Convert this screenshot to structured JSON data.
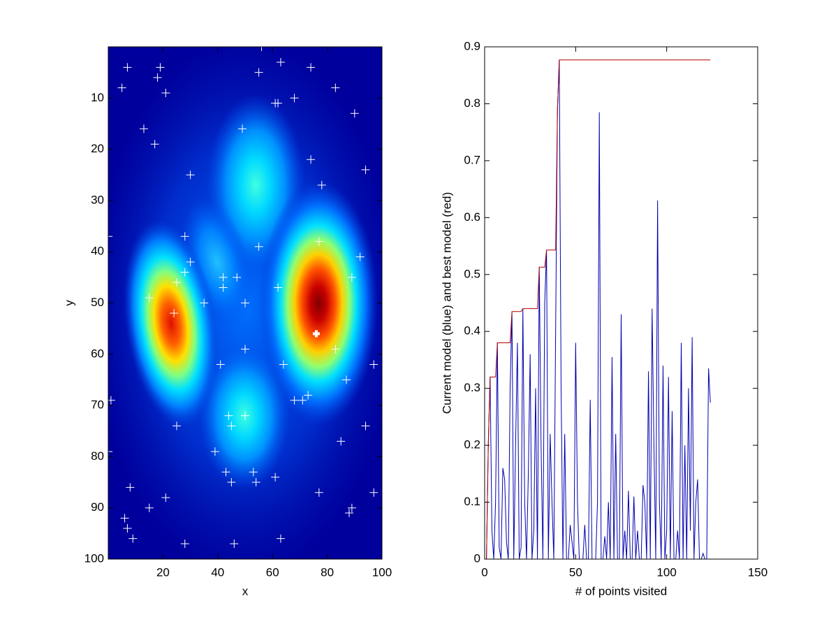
{
  "chart_data": [
    {
      "type": "scatter",
      "xlabel": "x",
      "ylabel": "y",
      "xlim": [
        0,
        100
      ],
      "ylim": [
        0,
        100
      ],
      "y_direction": "reverse",
      "xticks": [
        20,
        40,
        60,
        80,
        100
      ],
      "yticks": [
        10,
        20,
        30,
        40,
        50,
        60,
        70,
        80,
        90,
        100
      ],
      "series": [
        {
          "color": "#ffffff",
          "marker": "plus",
          "x": [
            7,
            5,
            19,
            18,
            21,
            55,
            56,
            63,
            74,
            83,
            61,
            62,
            68,
            90,
            13,
            49,
            17,
            74,
            30,
            94,
            78,
            28,
            0,
            55,
            77,
            92,
            30,
            28,
            25,
            42,
            47,
            42,
            62,
            89,
            15,
            35,
            50,
            24,
            50,
            83,
            41,
            64,
            97,
            87,
            68,
            71,
            73,
            1,
            44,
            50,
            45,
            25,
            94,
            85,
            39,
            0,
            43,
            53,
            61,
            45,
            54,
            8,
            77,
            97,
            21,
            15,
            89,
            88,
            6,
            7,
            9,
            63,
            28,
            46
          ],
          "y": [
            4,
            8,
            4,
            6,
            9,
            5,
            0,
            3,
            4,
            8,
            11,
            11,
            10,
            13,
            16,
            16,
            19,
            22,
            25,
            24,
            27,
            37,
            37,
            39,
            38,
            41,
            42,
            44,
            46,
            45,
            45,
            47,
            47,
            45,
            49,
            50,
            50,
            52,
            59,
            59,
            62,
            62,
            62,
            65,
            69,
            69,
            68,
            69,
            72,
            72,
            74,
            74,
            74,
            77,
            79,
            79,
            83,
            83,
            84,
            85,
            85,
            86,
            87,
            87,
            88,
            90,
            90,
            91,
            92,
            94,
            96,
            96,
            97,
            97
          ]
        },
        {
          "color": "#ffffff",
          "marker": "bold-plus",
          "x": [
            76
          ],
          "y": [
            56
          ]
        }
      ]
    },
    {
      "type": "line",
      "xlabel": "# of points visited",
      "ylabel": "Current model (blue) and best model (red)",
      "xlim": [
        0,
        150
      ],
      "ylim": [
        0,
        0.9
      ],
      "xticks": [
        0,
        50,
        100,
        150
      ],
      "yticks": [
        0,
        0.1,
        0.2,
        0.3,
        0.4,
        0.5,
        0.6,
        0.7,
        0.8,
        0.9
      ],
      "x": [
        1,
        2,
        3,
        4,
        5,
        6,
        7,
        8,
        9,
        10,
        11,
        12,
        13,
        14,
        15,
        16,
        17,
        18,
        19,
        20,
        21,
        22,
        23,
        24,
        25,
        26,
        27,
        28,
        29,
        30,
        31,
        32,
        33,
        34,
        35,
        36,
        37,
        38,
        39,
        40,
        41,
        42,
        43,
        44,
        45,
        46,
        47,
        48,
        49,
        50,
        51,
        52,
        53,
        54,
        55,
        56,
        57,
        58,
        59,
        60,
        61,
        62,
        63,
        64,
        65,
        66,
        67,
        68,
        69,
        70,
        71,
        72,
        73,
        74,
        75,
        76,
        77,
        78,
        79,
        80,
        81,
        82,
        83,
        84,
        85,
        86,
        87,
        88,
        89,
        90,
        91,
        92,
        93,
        94,
        95,
        96,
        97,
        98,
        99,
        100,
        101,
        102,
        103,
        104,
        105,
        106,
        107,
        108,
        109,
        110,
        111,
        112,
        113,
        114,
        115,
        116,
        117,
        118,
        119,
        120,
        121,
        122,
        123,
        124
      ],
      "series": [
        {
          "color": "#0000b0",
          "values": [
            0.0,
            0.2,
            0.32,
            0.05,
            0.0,
            0.1,
            0.38,
            0.02,
            0.0,
            0.16,
            0.14,
            0.03,
            0.0,
            0.3,
            0.435,
            0.0,
            0.2,
            0.38,
            0.0,
            0.02,
            0.44,
            0.1,
            0.0,
            0.15,
            0.36,
            0.0,
            0.05,
            0.3,
            0.0,
            0.513,
            0.2,
            0.0,
            0.45,
            0.543,
            0.0,
            0.22,
            0.1,
            0.0,
            0.4,
            0.79,
            0.877,
            0.3,
            0.0,
            0.22,
            0.0,
            0.0,
            0.06,
            0.03,
            0.0,
            0.38,
            0.1,
            0.0,
            0.0,
            0.0,
            0.06,
            0.0,
            0.0,
            0.28,
            0.0,
            0.0,
            0.0,
            0.1,
            0.785,
            0.0,
            0.0,
            0.04,
            0.0,
            0.1,
            0.0,
            0.355,
            0.0,
            0.22,
            0.0,
            0.0,
            0.43,
            0.0,
            0.05,
            0.0,
            0.12,
            0.0,
            0.0,
            0.11,
            0.0,
            0.05,
            0.0,
            0.0,
            0.13,
            0.1,
            0.0,
            0.33,
            0.0,
            0.44,
            0.2,
            0.0,
            0.63,
            0.1,
            0.0,
            0.34,
            0.0,
            0.05,
            0.32,
            0.0,
            0.26,
            0.0,
            0.0,
            0.05,
            0.0,
            0.38,
            0.0,
            0.2,
            0.0,
            0.3,
            0.05,
            0.39,
            0.0,
            0.1,
            0.14,
            0.0,
            0.0,
            0.01,
            0.0,
            0.0,
            0.335,
            0.275
          ]
        },
        {
          "color": "#b00000",
          "values": [
            0.0,
            0.2,
            0.32,
            0.32,
            0.32,
            0.32,
            0.38,
            0.38,
            0.38,
            0.38,
            0.38,
            0.38,
            0.38,
            0.38,
            0.435,
            0.435,
            0.435,
            0.435,
            0.435,
            0.435,
            0.44,
            0.44,
            0.44,
            0.44,
            0.44,
            0.44,
            0.44,
            0.44,
            0.44,
            0.513,
            0.513,
            0.513,
            0.513,
            0.543,
            0.543,
            0.543,
            0.543,
            0.543,
            0.543,
            0.79,
            0.877,
            0.877,
            0.877,
            0.877,
            0.877,
            0.877,
            0.877,
            0.877,
            0.877,
            0.877,
            0.877,
            0.877,
            0.877,
            0.877,
            0.877,
            0.877,
            0.877,
            0.877,
            0.877,
            0.877,
            0.877,
            0.877,
            0.877,
            0.877,
            0.877,
            0.877,
            0.877,
            0.877,
            0.877,
            0.877,
            0.877,
            0.877,
            0.877,
            0.877,
            0.877,
            0.877,
            0.877,
            0.877,
            0.877,
            0.877,
            0.877,
            0.877,
            0.877,
            0.877,
            0.877,
            0.877,
            0.877,
            0.877,
            0.877,
            0.877,
            0.877,
            0.877,
            0.877,
            0.877,
            0.877,
            0.877,
            0.877,
            0.877,
            0.877,
            0.877,
            0.877,
            0.877,
            0.877,
            0.877,
            0.877,
            0.877,
            0.877,
            0.877,
            0.877,
            0.877,
            0.877,
            0.877,
            0.877,
            0.877,
            0.877,
            0.877,
            0.877,
            0.877,
            0.877,
            0.877,
            0.877,
            0.877,
            0.877,
            0.877
          ]
        }
      ]
    }
  ]
}
